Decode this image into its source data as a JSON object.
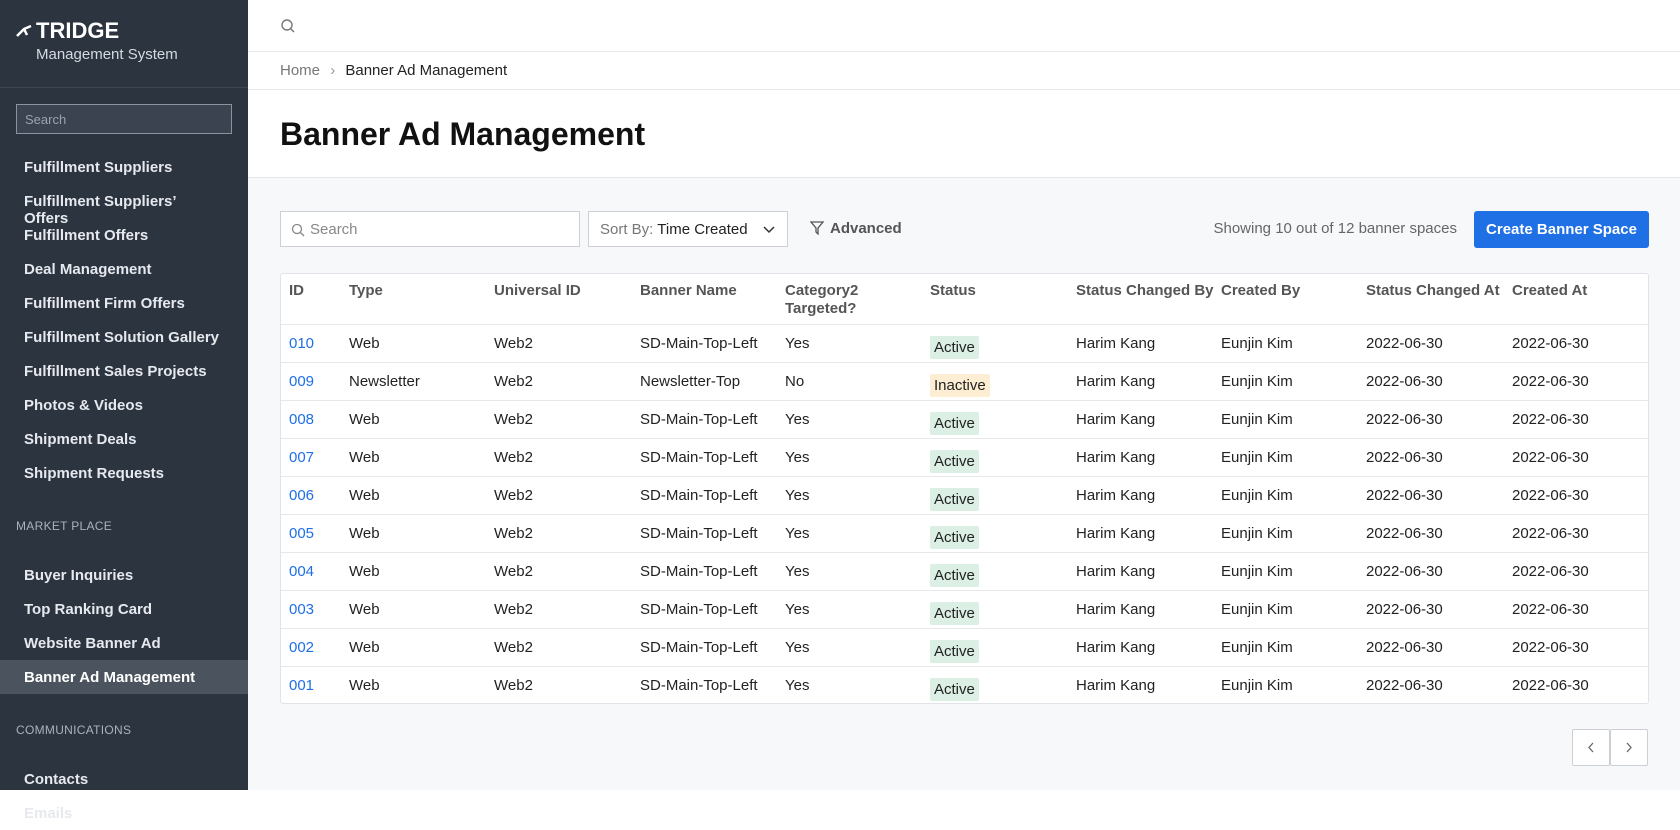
{
  "sidebar": {
    "brand": "TRIDGE",
    "subtitle": "Management System",
    "search_placeholder": "Search",
    "groups": [
      {
        "items": [
          {
            "label": "Fulfillment Suppliers"
          },
          {
            "label": "Fulfillment Suppliers’ Offers"
          },
          {
            "label": "Fulfillment Offers"
          },
          {
            "label": "Deal Management"
          },
          {
            "label": "Fulfillment Firm Offers"
          },
          {
            "label": "Fulfillment Solution Gallery"
          },
          {
            "label": "Fulfillment Sales Projects"
          },
          {
            "label": "Photos & Videos"
          },
          {
            "label": "Shipment Deals"
          },
          {
            "label": "Shipment Requests"
          }
        ]
      },
      {
        "label": "MARKET PLACE",
        "items": [
          {
            "label": "Buyer Inquiries"
          },
          {
            "label": "Top Ranking Card"
          },
          {
            "label": "Website Banner Ad"
          },
          {
            "label": "Banner Ad Management",
            "active": true
          }
        ]
      },
      {
        "label": "COMMUNICATIONS",
        "items": [
          {
            "label": "Contacts"
          },
          {
            "label": "Emails"
          }
        ]
      }
    ]
  },
  "breadcrumb": [
    "Home",
    "Banner Ad Management"
  ],
  "title": "Banner Ad Management",
  "toolbar": {
    "search_placeholder": "Search",
    "sort_label": "Sort By:",
    "sort_value": "Time Created",
    "advanced": "Advanced",
    "summary": "Showing 10 out of 12 banner spaces",
    "create_button": "Create Banner Space"
  },
  "table": {
    "columns": [
      "ID",
      "Type",
      "Universal ID",
      "Banner Name",
      "Category2 Targeted?",
      "Status",
      "Status Changed By",
      "Created By",
      "Status Changed At",
      "Created At"
    ],
    "status_colors": {
      "Active": "#dcefe5",
      "Inactive": "#fdedd3"
    },
    "rows": [
      [
        "010",
        "Web",
        "Web2",
        "SD-Main-Top-Left",
        "Yes",
        "Active",
        "Harim Kang",
        "Eunjin Kim",
        "2022-06-30",
        "2022-06-30"
      ],
      [
        "009",
        "Newsletter",
        "Web2",
        "Newsletter-Top",
        "No",
        "Inactive",
        "Harim Kang",
        "Eunjin Kim",
        "2022-06-30",
        "2022-06-30"
      ],
      [
        "008",
        "Web",
        "Web2",
        "SD-Main-Top-Left",
        "Yes",
        "Active",
        "Harim Kang",
        "Eunjin Kim",
        "2022-06-30",
        "2022-06-30"
      ],
      [
        "007",
        "Web",
        "Web2",
        "SD-Main-Top-Left",
        "Yes",
        "Active",
        "Harim Kang",
        "Eunjin Kim",
        "2022-06-30",
        "2022-06-30"
      ],
      [
        "006",
        "Web",
        "Web2",
        "SD-Main-Top-Left",
        "Yes",
        "Active",
        "Harim Kang",
        "Eunjin Kim",
        "2022-06-30",
        "2022-06-30"
      ],
      [
        "005",
        "Web",
        "Web2",
        "SD-Main-Top-Left",
        "Yes",
        "Active",
        "Harim Kang",
        "Eunjin Kim",
        "2022-06-30",
        "2022-06-30"
      ],
      [
        "004",
        "Web",
        "Web2",
        "SD-Main-Top-Left",
        "Yes",
        "Active",
        "Harim Kang",
        "Eunjin Kim",
        "2022-06-30",
        "2022-06-30"
      ],
      [
        "003",
        "Web",
        "Web2",
        "SD-Main-Top-Left",
        "Yes",
        "Active",
        "Harim Kang",
        "Eunjin Kim",
        "2022-06-30",
        "2022-06-30"
      ],
      [
        "002",
        "Web",
        "Web2",
        "SD-Main-Top-Left",
        "Yes",
        "Active",
        "Harim Kang",
        "Eunjin Kim",
        "2022-06-30",
        "2022-06-30"
      ],
      [
        "001",
        "Web",
        "Web2",
        "SD-Main-Top-Left",
        "Yes",
        "Active",
        "Harim Kang",
        "Eunjin Kim",
        "2022-06-30",
        "2022-06-30"
      ]
    ]
  }
}
